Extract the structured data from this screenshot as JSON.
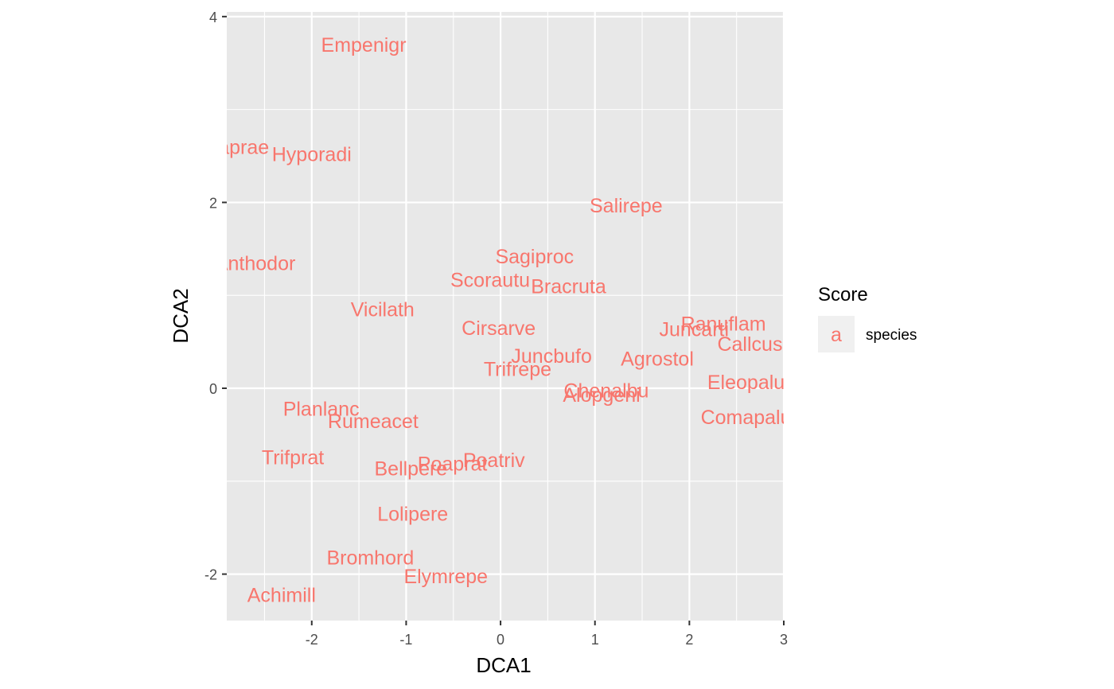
{
  "chart_data": {
    "type": "scatter",
    "xlabel": "DCA1",
    "ylabel": "DCA2",
    "xlim": [
      -2.9,
      3.0
    ],
    "ylim": [
      -2.5,
      4.05
    ],
    "x_ticks": [
      -2,
      -1,
      0,
      1,
      2,
      3
    ],
    "y_ticks": [
      -2,
      0,
      2,
      4
    ],
    "grid": true,
    "panel_background": "#e8e8e8",
    "grid_color": "#ffffff",
    "label_color": "#f8766d",
    "legend": {
      "title": "Score",
      "placement": "right",
      "key_glyph": "a",
      "entries": [
        "species"
      ]
    },
    "series": [
      {
        "name": "species",
        "points": [
          {
            "label": "Empenigr",
            "x": -1.45,
            "y": 3.7
          },
          {
            "label": "Hyporadi",
            "x": -2.0,
            "y": 2.52
          },
          {
            "label": "Airaprae",
            "x": -2.85,
            "y": 2.6
          },
          {
            "label": "Salirepe",
            "x": 1.33,
            "y": 1.97
          },
          {
            "label": "Anthodor",
            "x": -2.6,
            "y": 1.35
          },
          {
            "label": "Sagiproc",
            "x": 0.36,
            "y": 1.42
          },
          {
            "label": "Scorautu",
            "x": -0.11,
            "y": 1.17
          },
          {
            "label": "Bracruta",
            "x": 0.72,
            "y": 1.1
          },
          {
            "label": "Vicilath",
            "x": -1.25,
            "y": 0.85
          },
          {
            "label": "Cirsarve",
            "x": -0.02,
            "y": 0.65
          },
          {
            "label": "Ranuflam",
            "x": 2.36,
            "y": 0.7
          },
          {
            "label": "Juncarti",
            "x": 2.05,
            "y": 0.64
          },
          {
            "label": "Callcusp",
            "x": 2.7,
            "y": 0.48
          },
          {
            "label": "Juncbufo",
            "x": 0.54,
            "y": 0.35
          },
          {
            "label": "Agrostol",
            "x": 1.66,
            "y": 0.32
          },
          {
            "label": "Trifrepe",
            "x": 0.18,
            "y": 0.21
          },
          {
            "label": "Eleopalu",
            "x": 2.6,
            "y": 0.07
          },
          {
            "label": "Chenalbu",
            "x": 1.12,
            "y": -0.02
          },
          {
            "label": "Alopgeni",
            "x": 1.07,
            "y": -0.07
          },
          {
            "label": "Planlanc",
            "x": -1.9,
            "y": -0.22
          },
          {
            "label": "Rumeacet",
            "x": -1.35,
            "y": -0.35
          },
          {
            "label": "Comapalu",
            "x": 2.6,
            "y": -0.31
          },
          {
            "label": "Trifprat",
            "x": -2.2,
            "y": -0.74
          },
          {
            "label": "Poatriv",
            "x": -0.07,
            "y": -0.77
          },
          {
            "label": "Poaprat",
            "x": -0.51,
            "y": -0.81
          },
          {
            "label": "Bellpere",
            "x": -0.95,
            "y": -0.86
          },
          {
            "label": "Lolipere",
            "x": -0.93,
            "y": -1.35
          },
          {
            "label": "Bromhord",
            "x": -1.38,
            "y": -1.82
          },
          {
            "label": "Elymrepe",
            "x": -0.58,
            "y": -2.02
          },
          {
            "label": "Achimill",
            "x": -2.32,
            "y": -2.22
          }
        ]
      }
    ]
  }
}
